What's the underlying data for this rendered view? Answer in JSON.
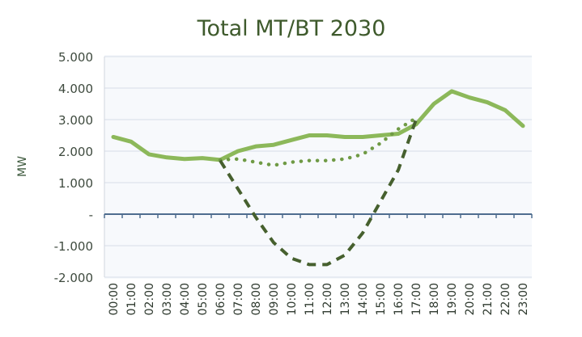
{
  "chart_data": {
    "type": "line",
    "title": "Total MT/BT 2030",
    "xlabel": "",
    "ylabel": "MW",
    "ylim": [
      -2000,
      5000
    ],
    "yticks": [
      5000,
      4000,
      3000,
      2000,
      1000,
      0,
      -1000,
      -2000
    ],
    "ytick_labels": [
      "5.000",
      "4.000",
      "3.000",
      "2.000",
      "1.000",
      "-",
      "-1.000",
      "-2.000"
    ],
    "categories": [
      "00:00",
      "01:00",
      "02:00",
      "03:00",
      "04:00",
      "05:00",
      "06:00",
      "07:00",
      "08:00",
      "09:00",
      "10:00",
      "11:00",
      "12:00",
      "13:00",
      "14:00",
      "15:00",
      "16:00",
      "17:00",
      "18:00",
      "19:00",
      "20:00",
      "21:00",
      "22:00",
      "23:00"
    ],
    "grid": true,
    "legend": "none",
    "series": [
      {
        "style": "solid",
        "color": "#8cb85a",
        "values": [
          2450,
          2300,
          1900,
          1800,
          1750,
          1780,
          1720,
          2000,
          2150,
          2200,
          2350,
          2500,
          2500,
          2450,
          2450,
          2500,
          2550,
          2850,
          3500,
          3900,
          3700,
          3550,
          3300,
          2800
        ]
      },
      {
        "style": "dotted",
        "color": "#6f9a45",
        "values": [
          null,
          null,
          null,
          null,
          null,
          null,
          1720,
          1750,
          1650,
          1550,
          1650,
          1700,
          1700,
          1750,
          1900,
          2250,
          2700,
          3050,
          null,
          null,
          null,
          null,
          null,
          null
        ]
      },
      {
        "style": "dashed",
        "color": "#46602e",
        "values": [
          null,
          null,
          null,
          null,
          null,
          null,
          1700,
          800,
          -100,
          -900,
          -1400,
          -1600,
          -1600,
          -1300,
          -600,
          400,
          1400,
          3000,
          null,
          null,
          null,
          null,
          null,
          null
        ]
      }
    ]
  }
}
